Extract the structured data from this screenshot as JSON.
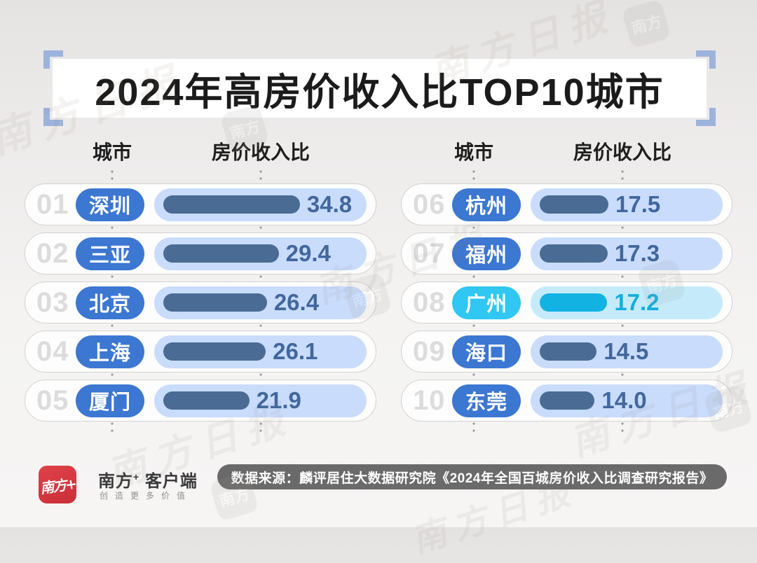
{
  "title": "2024年高房价收入比TOP10城市",
  "headers": {
    "city": "城市",
    "ratio": "房价收入比"
  },
  "chart_data": {
    "type": "bar",
    "title": "2024年高房价收入比TOP10城市",
    "category_label": "城市",
    "value_label": "房价收入比",
    "categories": [
      "深圳",
      "三亚",
      "北京",
      "上海",
      "厦门",
      "杭州",
      "福州",
      "广州",
      "海口",
      "东莞"
    ],
    "ranks": [
      "01",
      "02",
      "03",
      "04",
      "05",
      "06",
      "07",
      "08",
      "09",
      "10"
    ],
    "values": [
      34.8,
      29.4,
      26.4,
      26.1,
      21.9,
      17.5,
      17.3,
      17.2,
      14.5,
      14.0
    ],
    "highlighted_category": "广州",
    "layout": "two-column ranked list, ranks 01-05 left, 06-10 right",
    "value_range_implied": [
      0,
      34.8
    ]
  },
  "table": {
    "left": [
      {
        "rank": "01",
        "city": "深圳",
        "value": "34.8",
        "highlight": false
      },
      {
        "rank": "02",
        "city": "三亚",
        "value": "29.4",
        "highlight": false
      },
      {
        "rank": "03",
        "city": "北京",
        "value": "26.4",
        "highlight": false
      },
      {
        "rank": "04",
        "city": "上海",
        "value": "26.1",
        "highlight": false
      },
      {
        "rank": "05",
        "city": "厦门",
        "value": "21.9",
        "highlight": false
      }
    ],
    "right": [
      {
        "rank": "06",
        "city": "杭州",
        "value": "17.5",
        "highlight": false
      },
      {
        "rank": "07",
        "city": "福州",
        "value": "17.3",
        "highlight": false
      },
      {
        "rank": "08",
        "city": "广州",
        "value": "17.2",
        "highlight": true
      },
      {
        "rank": "09",
        "city": "海口",
        "value": "14.5",
        "highlight": false
      },
      {
        "rank": "10",
        "city": "东莞",
        "value": "14.0",
        "highlight": false
      }
    ]
  },
  "colors": {
    "normal": {
      "pill": "#3c77d2",
      "track": "#c9dcfc",
      "bar": "#4a6b94",
      "value": "#42679e"
    },
    "highlight": {
      "pill": "#30c7f2",
      "track": "#c5ebfb",
      "bar": "#12b2e2",
      "value": "#14aede"
    },
    "title_bracket": "#9db3dc",
    "source_bg": "#6a6a6a",
    "logo_red": "#d8343c",
    "rank_gray": "#dcdcdc"
  },
  "footer": {
    "logo_glyph": "南方+",
    "brand_name": "南方",
    "brand_plus": "+",
    "brand_suffix": " 客户端",
    "slogan": "创造更多价值",
    "source": "数据来源：麟评居住大数据研究院《2024年全国百城房价收入比调查研究报告》"
  },
  "watermark": {
    "text": "南方日报",
    "badge_text": "南方"
  }
}
